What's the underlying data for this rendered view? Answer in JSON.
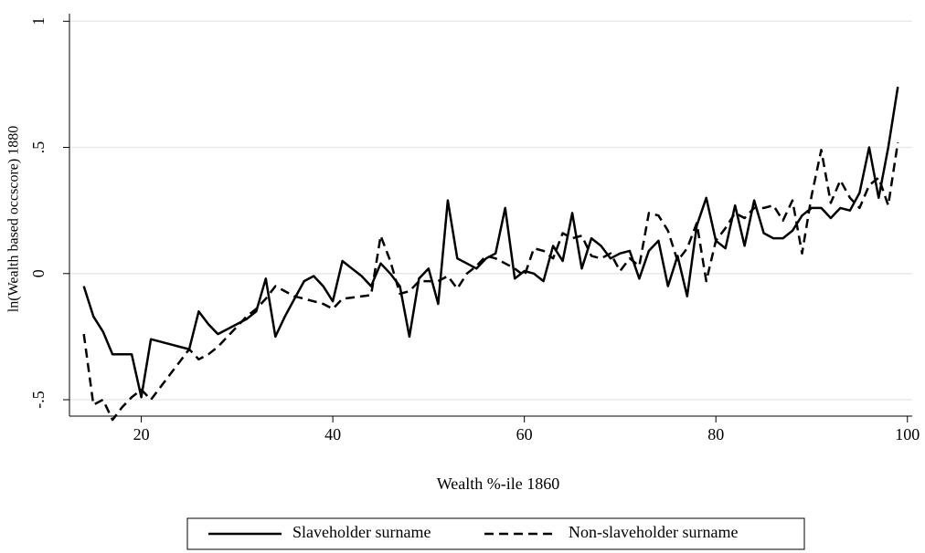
{
  "chart_data": {
    "type": "line",
    "xlabel": "Wealth %-ile 1860",
    "ylabel": "ln(Wealth based occscore) 1880",
    "x": [
      14,
      15,
      16,
      17,
      18,
      19,
      20,
      21,
      22,
      23,
      24,
      25,
      26,
      27,
      28,
      29,
      30,
      31,
      32,
      33,
      34,
      35,
      36,
      37,
      38,
      39,
      40,
      41,
      42,
      43,
      44,
      45,
      46,
      47,
      48,
      49,
      50,
      51,
      52,
      53,
      54,
      55,
      56,
      57,
      58,
      59,
      60,
      61,
      62,
      63,
      64,
      65,
      66,
      67,
      68,
      69,
      70,
      71,
      72,
      73,
      74,
      75,
      76,
      77,
      78,
      79,
      80,
      81,
      82,
      83,
      84,
      85,
      86,
      87,
      88,
      89,
      90,
      91,
      92,
      93,
      94,
      95,
      96,
      97,
      98,
      99
    ],
    "series": [
      {
        "name": "Slaveholder surname",
        "color": "#000000",
        "style": "solid",
        "values": [
          -0.05,
          -0.17,
          -0.23,
          -0.32,
          -0.32,
          -0.32,
          -0.49,
          -0.26,
          -0.27,
          -0.28,
          -0.29,
          -0.3,
          -0.15,
          -0.2,
          -0.24,
          -0.22,
          -0.2,
          -0.18,
          -0.15,
          -0.02,
          -0.25,
          -0.17,
          -0.1,
          -0.03,
          -0.01,
          -0.05,
          -0.11,
          0.05,
          0.02,
          -0.01,
          -0.05,
          0.04,
          0.0,
          -0.05,
          -0.25,
          -0.02,
          0.02,
          -0.12,
          0.29,
          0.06,
          0.04,
          0.02,
          0.06,
          0.08,
          0.26,
          -0.02,
          0.01,
          0.0,
          -0.03,
          0.11,
          0.05,
          0.24,
          0.02,
          0.14,
          0.11,
          0.06,
          0.08,
          0.09,
          -0.02,
          0.09,
          0.13,
          -0.05,
          0.07,
          -0.09,
          0.19,
          0.3,
          0.13,
          0.1,
          0.27,
          0.11,
          0.29,
          0.16,
          0.14,
          0.14,
          0.17,
          0.23,
          0.26,
          0.26,
          0.22,
          0.26,
          0.25,
          0.32,
          0.5,
          0.3,
          0.5,
          0.74
        ]
      },
      {
        "name": "Non-slaveholder surname",
        "color": "#000000",
        "style": "dashed",
        "values": [
          -0.24,
          -0.52,
          -0.5,
          -0.58,
          -0.53,
          -0.49,
          -0.46,
          -0.5,
          -0.45,
          -0.4,
          -0.35,
          -0.3,
          -0.34,
          -0.32,
          -0.29,
          -0.25,
          -0.21,
          -0.17,
          -0.14,
          -0.1,
          -0.05,
          -0.07,
          -0.09,
          -0.1,
          -0.11,
          -0.12,
          -0.14,
          -0.1,
          -0.095,
          -0.09,
          -0.085,
          0.15,
          0.05,
          -0.08,
          -0.07,
          -0.03,
          -0.03,
          -0.03,
          -0.01,
          -0.06,
          0.0,
          0.03,
          0.07,
          0.06,
          0.04,
          0.02,
          -0.01,
          0.1,
          0.09,
          0.06,
          0.16,
          0.14,
          0.15,
          0.07,
          0.06,
          0.08,
          0.01,
          0.06,
          0.03,
          0.24,
          0.23,
          0.17,
          0.05,
          0.1,
          0.2,
          -0.03,
          0.13,
          0.18,
          0.24,
          0.22,
          0.26,
          0.26,
          0.27,
          0.21,
          0.29,
          0.08,
          0.31,
          0.49,
          0.28,
          0.37,
          0.3,
          0.26,
          0.35,
          0.38,
          0.27,
          0.52
        ]
      }
    ],
    "xlim": [
      12.5,
      100.5
    ],
    "xticks": [
      20,
      40,
      60,
      80,
      100
    ],
    "ylim": [
      -0.565,
      1.03
    ],
    "yticks": [
      {
        "value": -0.5,
        "label": "-.5"
      },
      0,
      {
        "value": 0.5,
        "label": ".5"
      },
      1
    ],
    "grid": true
  }
}
